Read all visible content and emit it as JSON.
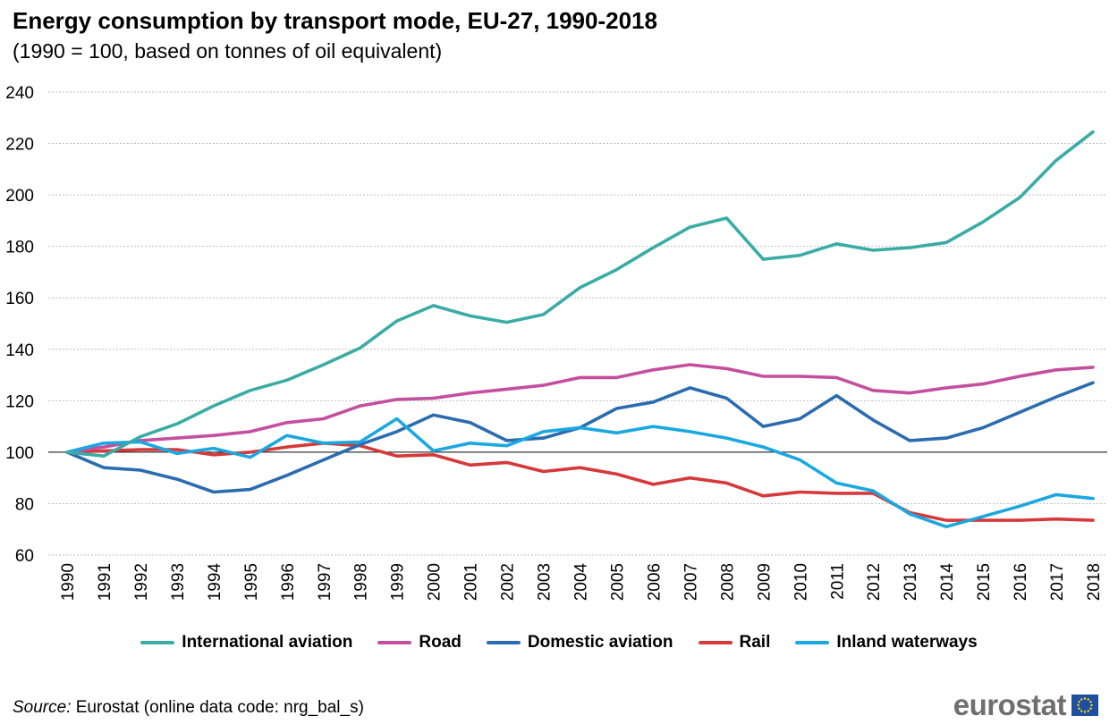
{
  "header": {
    "title": "Energy consumption by transport mode, EU-27, 1990-2018",
    "subtitle": "(1990 = 100, based on tonnes of oil equivalent)"
  },
  "footer": {
    "source_label": "Source:",
    "source_text": " Eurostat (online data code: nrg_bal_s)",
    "logo_text": "eurostat",
    "logo_icon": "eu-flag-icon"
  },
  "chart_data": {
    "type": "line",
    "title": "Energy consumption by transport mode, EU-27, 1990-2018",
    "subtitle": "(1990 = 100, based on tonnes of oil equivalent)",
    "xlabel": "",
    "ylabel": "",
    "ylim": [
      60,
      240
    ],
    "yticks": [
      60,
      80,
      100,
      120,
      140,
      160,
      180,
      200,
      220,
      240
    ],
    "grid": true,
    "legend_position": "bottom",
    "x": [
      "1990",
      "1991",
      "1992",
      "1993",
      "1994",
      "1995",
      "1996",
      "1997",
      "1998",
      "1999",
      "2000",
      "2001",
      "2002",
      "2003",
      "2004",
      "2005",
      "2006",
      "2007",
      "2008",
      "2009",
      "2010",
      "2011",
      "2012",
      "2013",
      "2014",
      "2015",
      "2016",
      "2017",
      "2018"
    ],
    "series": [
      {
        "name": "International aviation",
        "color": "#3aaca5",
        "values": [
          100,
          98.5,
          106,
          111,
          118,
          124,
          128,
          134,
          140.5,
          151,
          157,
          153,
          150.5,
          153.5,
          164,
          171,
          179.5,
          187.5,
          191,
          175,
          176.5,
          181,
          178.5,
          179.5,
          181.5,
          189.5,
          199,
          213.5,
          224.5
        ]
      },
      {
        "name": "Road",
        "color": "#c44f9e",
        "values": [
          100,
          102,
          104.5,
          105.5,
          106.5,
          108,
          111.5,
          113,
          118,
          120.5,
          121,
          123,
          124.5,
          126,
          129,
          129,
          132,
          134,
          132.5,
          129.5,
          129.5,
          129,
          124,
          123,
          125,
          126.5,
          129.5,
          132,
          133
        ]
      },
      {
        "name": "Domestic aviation",
        "color": "#2b6cb0",
        "values": [
          100,
          94,
          93,
          89.5,
          84.5,
          85.5,
          91,
          97,
          103,
          108,
          114.5,
          111.5,
          104.5,
          105.5,
          109.5,
          117,
          119.5,
          125,
          121,
          110,
          113,
          122,
          112.5,
          104.5,
          105.5,
          109.5,
          115.5,
          121.5,
          127
        ]
      },
      {
        "name": "Rail",
        "color": "#d6393a",
        "values": [
          100,
          100.5,
          101,
          101,
          99,
          100,
          102,
          103.5,
          102.5,
          98.5,
          99,
          95,
          96,
          92.5,
          94,
          91.5,
          87.5,
          90,
          88,
          83,
          84.5,
          84,
          84,
          76.5,
          73.5,
          73.5,
          73.5,
          74,
          73.5
        ]
      },
      {
        "name": "Inland waterways",
        "color": "#1ba8e0",
        "values": [
          100,
          103.5,
          104,
          99.5,
          101.5,
          98,
          106.5,
          103.5,
          104,
          113,
          100.5,
          103.5,
          102.5,
          108,
          109.5,
          107.5,
          110,
          108,
          105.5,
          102,
          97,
          88,
          85,
          76,
          71,
          75,
          79,
          83.5,
          82
        ]
      }
    ]
  }
}
